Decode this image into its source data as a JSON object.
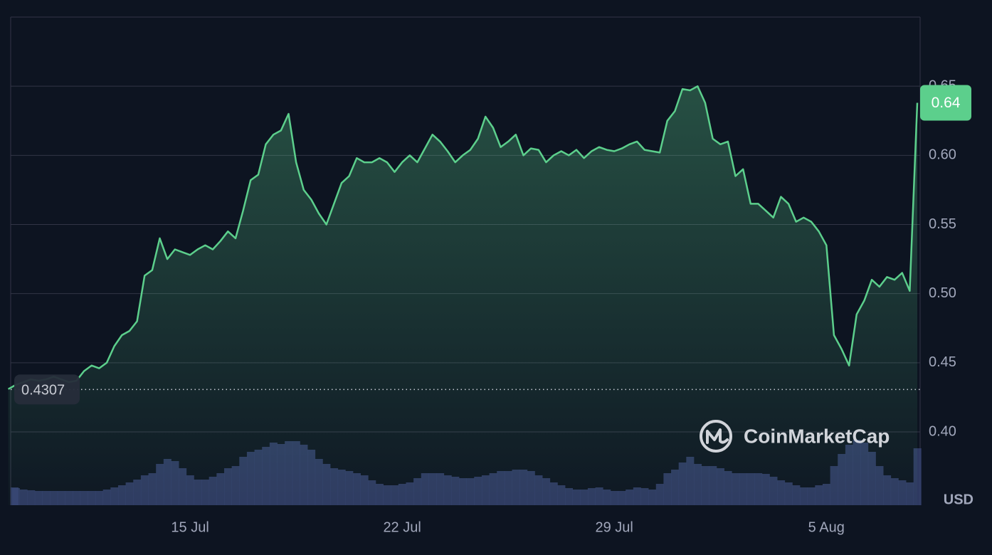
{
  "chart_data": {
    "type": "line",
    "categories": [
      null,
      null,
      null,
      null,
      null,
      null,
      null,
      null,
      null,
      null,
      null,
      null,
      null,
      null,
      null,
      null,
      null,
      null,
      null,
      null,
      null,
      null,
      null,
      null,
      "15 Jul",
      null,
      null,
      null,
      null,
      null,
      null,
      null,
      null,
      null,
      null,
      null,
      null,
      null,
      null,
      null,
      null,
      null,
      null,
      null,
      null,
      null,
      null,
      null,
      null,
      null,
      null,
      null,
      "22 Jul",
      null,
      null,
      null,
      null,
      null,
      null,
      null,
      null,
      null,
      null,
      null,
      null,
      null,
      null,
      null,
      null,
      null,
      null,
      null,
      null,
      null,
      null,
      null,
      null,
      null,
      null,
      null,
      "29 Jul",
      null,
      null,
      null,
      null,
      null,
      null,
      null,
      null,
      null,
      null,
      null,
      null,
      null,
      null,
      null,
      null,
      null,
      null,
      null,
      null,
      null,
      null,
      null,
      null,
      null,
      null,
      null,
      "5 Aug",
      null,
      null,
      null,
      null,
      null,
      null,
      null,
      null,
      null,
      null,
      null,
      null
    ],
    "series": [
      {
        "color": "#5ccf8c",
        "values": [
          0.431,
          0.434,
          0.436,
          0.438,
          0.437,
          0.438,
          0.44,
          0.438,
          0.436,
          0.437,
          0.444,
          0.448,
          0.446,
          0.45,
          0.462,
          0.47,
          0.473,
          0.48,
          0.513,
          0.517,
          0.54,
          0.525,
          0.532,
          0.53,
          0.528,
          0.532,
          0.535,
          0.532,
          0.538,
          0.545,
          0.54,
          0.56,
          0.582,
          0.586,
          0.608,
          0.615,
          0.618,
          0.63,
          0.595,
          0.575,
          0.568,
          0.558,
          0.55,
          0.565,
          0.58,
          0.585,
          0.598,
          0.595,
          0.595,
          0.598,
          0.595,
          0.588,
          0.595,
          0.6,
          0.595,
          0.605,
          0.615,
          0.61,
          0.603,
          0.595,
          0.6,
          0.604,
          0.612,
          0.628,
          0.62,
          0.606,
          0.61,
          0.615,
          0.6,
          0.605,
          0.604,
          0.595,
          0.6,
          0.603,
          0.6,
          0.604,
          0.598,
          0.603,
          0.606,
          0.604,
          0.603,
          0.605,
          0.608,
          0.61,
          0.604,
          0.603,
          0.602,
          0.625,
          0.632,
          0.648,
          0.647,
          0.65,
          0.638,
          0.612,
          0.608,
          0.61,
          0.585,
          0.59,
          0.565,
          0.565,
          0.56,
          0.555,
          0.57,
          0.565,
          0.552,
          0.555,
          0.552,
          0.545,
          0.535,
          0.47,
          0.46,
          0.448,
          0.485,
          0.495,
          0.51,
          0.505,
          0.512,
          0.51,
          0.515,
          0.502,
          0.638
        ]
      }
    ],
    "volume": {
      "color": "#3a4577",
      "values": [
        25,
        24,
        22,
        21,
        20,
        20,
        20,
        20,
        20,
        20,
        20,
        20,
        20,
        22,
        25,
        28,
        32,
        36,
        42,
        45,
        58,
        65,
        62,
        52,
        42,
        36,
        36,
        40,
        45,
        52,
        55,
        68,
        75,
        78,
        82,
        88,
        86,
        90,
        90,
        85,
        78,
        65,
        58,
        52,
        50,
        48,
        45,
        42,
        35,
        30,
        28,
        28,
        30,
        32,
        38,
        45,
        45,
        45,
        42,
        40,
        38,
        38,
        40,
        42,
        45,
        48,
        48,
        50,
        50,
        48,
        42,
        38,
        32,
        28,
        24,
        22,
        22,
        24,
        25,
        22,
        20,
        20,
        22,
        25,
        24,
        22,
        30,
        45,
        50,
        60,
        68,
        58,
        55,
        55,
        52,
        48,
        45,
        45,
        45,
        45,
        44,
        40,
        35,
        32,
        28,
        25,
        25,
        28,
        30,
        55,
        72,
        85,
        92,
        88,
        75,
        55,
        42,
        38,
        35,
        32,
        80
      ]
    },
    "ylim": [
      0.347,
      0.7
    ],
    "yticks": [
      {
        "value": 0.4,
        "label": "0.40"
      },
      0.45,
      {
        "value": 0.5,
        "label": "0.50"
      },
      0.55,
      {
        "value": 0.6,
        "label": "0.60"
      },
      0.65
    ],
    "grid": true,
    "current_price": {
      "value": 0.638,
      "label": "0.64"
    },
    "open_price": {
      "value": 0.4307,
      "label": "0.4307"
    },
    "currency": "USD",
    "watermark": "CoinMarketCap"
  }
}
